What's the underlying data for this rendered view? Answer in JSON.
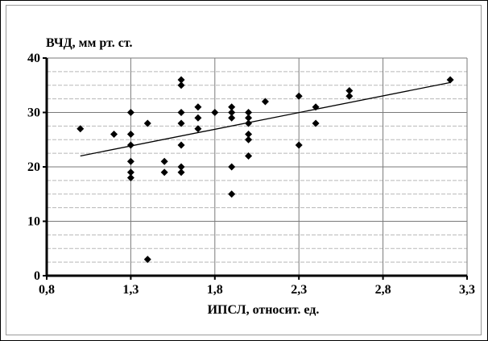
{
  "chart_data": {
    "type": "scatter",
    "title": "",
    "ylabel": "ВЧД, мм рт. ст.",
    "xlabel": "ИПСЛ, относит. ед.",
    "xlim": [
      0.8,
      3.3
    ],
    "ylim": [
      0,
      40
    ],
    "x_ticks": [
      0.8,
      1.3,
      1.8,
      2.3,
      2.8,
      3.3
    ],
    "x_tick_labels": [
      "0,8",
      "1,3",
      "1,8",
      "2,3",
      "2,8",
      "3,3"
    ],
    "y_ticks": [
      0,
      10,
      20,
      30,
      40
    ],
    "y_tick_labels": [
      "0",
      "10",
      "20",
      "30",
      "40"
    ],
    "grid": {
      "major_x": true,
      "major_y": true,
      "minor_y_step": 2.5
    },
    "legend": "none",
    "marker": "diamond",
    "marker_color": "#000000",
    "points": [
      {
        "x": 1.0,
        "y": 27
      },
      {
        "x": 1.2,
        "y": 26
      },
      {
        "x": 1.3,
        "y": 30
      },
      {
        "x": 1.3,
        "y": 26
      },
      {
        "x": 1.3,
        "y": 24
      },
      {
        "x": 1.3,
        "y": 21
      },
      {
        "x": 1.3,
        "y": 19
      },
      {
        "x": 1.3,
        "y": 18
      },
      {
        "x": 1.4,
        "y": 28
      },
      {
        "x": 1.4,
        "y": 3
      },
      {
        "x": 1.5,
        "y": 21
      },
      {
        "x": 1.5,
        "y": 19
      },
      {
        "x": 1.6,
        "y": 36
      },
      {
        "x": 1.6,
        "y": 35
      },
      {
        "x": 1.6,
        "y": 30
      },
      {
        "x": 1.6,
        "y": 28
      },
      {
        "x": 1.6,
        "y": 24
      },
      {
        "x": 1.6,
        "y": 20
      },
      {
        "x": 1.6,
        "y": 19
      },
      {
        "x": 1.7,
        "y": 31
      },
      {
        "x": 1.7,
        "y": 29
      },
      {
        "x": 1.7,
        "y": 27
      },
      {
        "x": 1.8,
        "y": 30
      },
      {
        "x": 1.9,
        "y": 31
      },
      {
        "x": 1.9,
        "y": 30
      },
      {
        "x": 1.9,
        "y": 29
      },
      {
        "x": 1.9,
        "y": 20
      },
      {
        "x": 1.9,
        "y": 15
      },
      {
        "x": 2.0,
        "y": 30
      },
      {
        "x": 2.0,
        "y": 29
      },
      {
        "x": 2.0,
        "y": 28
      },
      {
        "x": 2.0,
        "y": 26
      },
      {
        "x": 2.0,
        "y": 25
      },
      {
        "x": 2.0,
        "y": 22
      },
      {
        "x": 2.1,
        "y": 32
      },
      {
        "x": 2.3,
        "y": 33
      },
      {
        "x": 2.3,
        "y": 24
      },
      {
        "x": 2.4,
        "y": 31
      },
      {
        "x": 2.4,
        "y": 28
      },
      {
        "x": 2.6,
        "y": 34
      },
      {
        "x": 2.6,
        "y": 33
      },
      {
        "x": 3.2,
        "y": 36
      }
    ],
    "trendline": {
      "type": "linear",
      "from": {
        "x": 1.0,
        "y": 22
      },
      "to": {
        "x": 3.2,
        "y": 35.5
      }
    }
  }
}
